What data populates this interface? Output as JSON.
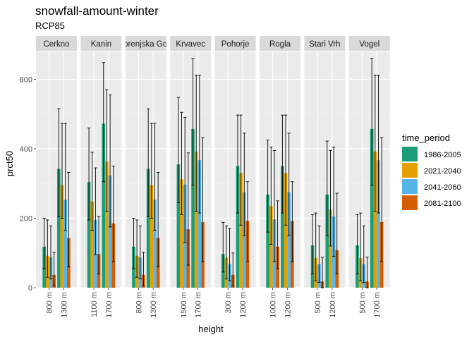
{
  "chart_data": {
    "type": "bar",
    "title": "snowfall-amount-winter",
    "subtitle": "RCP85",
    "xlabel": "height",
    "ylabel": "prct50",
    "ylim": [
      0,
      680
    ],
    "yticks": [
      0,
      200,
      400,
      600
    ],
    "grid": true,
    "legend": {
      "title": "time_period",
      "position": "right",
      "entries": [
        "1986-2005",
        "2021-2040",
        "2041-2060",
        "2081-2100"
      ],
      "colors": [
        "#1B9E77",
        "#E69F00",
        "#56B4E9",
        "#D55E00"
      ]
    },
    "facets": [
      {
        "name": "Cerkno",
        "heights": [
          {
            "label": "800 m",
            "values": [
              118,
              92,
              87,
              37
            ],
            "lower": [
              55,
              30,
              25,
              5
            ],
            "upper": [
              200,
              195,
              178,
              102
            ]
          },
          {
            "label": "1300 m",
            "values": [
              342,
              295,
              253,
              143
            ],
            "lower": [
              205,
              200,
              165,
              60
            ],
            "upper": [
              515,
              473,
              473,
              332
            ]
          }
        ]
      },
      {
        "name": "Kanin",
        "heights": [
          {
            "label": "1100 m",
            "values": [
              304,
              248,
              195,
              97
            ],
            "lower": [
              195,
              165,
              95,
              40
            ],
            "upper": [
              460,
              390,
              345,
              205
            ]
          },
          {
            "label": "1700 m",
            "values": [
              472,
              363,
              323,
              185
            ],
            "lower": [
              305,
              220,
              175,
              75
            ],
            "upper": [
              648,
              570,
              555,
              350
            ]
          }
        ]
      },
      {
        "name": "Gorenjska Gora",
        "heights": [
          {
            "label": "800 m",
            "values": [
              118,
              92,
              87,
              37
            ],
            "lower": [
              55,
              30,
              25,
              5
            ],
            "upper": [
              200,
              195,
              178,
              102
            ]
          },
          {
            "label": "1300 m",
            "values": [
              342,
              295,
              253,
              143
            ],
            "lower": [
              205,
              200,
              165,
              60
            ],
            "upper": [
              515,
              473,
              473,
              332
            ]
          }
        ]
      },
      {
        "name": "Krvavec",
        "heights": [
          {
            "label": "1500 m",
            "values": [
              355,
              312,
              297,
              168
            ],
            "lower": [
              245,
              210,
              130,
              65
            ],
            "upper": [
              548,
              505,
              490,
              388
            ]
          },
          {
            "label": "1700 m",
            "values": [
              457,
              392,
              367,
              189
            ],
            "lower": [
              295,
              220,
              215,
              75
            ],
            "upper": [
              660,
              612,
              612,
              432
            ]
          }
        ]
      },
      {
        "name": "Pohorje",
        "heights": [
          {
            "label": "300 m",
            "values": [
              97,
              86,
              68,
              37
            ],
            "lower": [
              45,
              25,
              20,
              5
            ],
            "upper": [
              188,
              178,
              170,
              100
            ]
          },
          {
            "label": "1200 m",
            "values": [
              350,
              330,
              275,
              192
            ],
            "lower": [
              215,
              180,
              150,
              75
            ],
            "upper": [
              497,
              497,
              445,
              305
            ]
          }
        ]
      },
      {
        "name": "Rogla",
        "heights": [
          {
            "label": "1000 m",
            "values": [
              268,
              235,
              197,
              118
            ],
            "lower": [
              160,
              125,
              75,
              55
            ],
            "upper": [
              425,
              405,
              395,
              250
            ]
          },
          {
            "label": "1200 m",
            "values": [
              350,
              330,
              275,
              192
            ],
            "lower": [
              215,
              180,
              150,
              75
            ],
            "upper": [
              497,
              497,
              445,
              305
            ]
          }
        ]
      },
      {
        "name": "Stari Vrh",
        "heights": [
          {
            "label": "500 m",
            "values": [
              122,
              85,
              68,
              18
            ],
            "lower": [
              40,
              20,
              15,
              0
            ],
            "upper": [
              210,
              215,
              178,
              88
            ]
          },
          {
            "label": "1200 m",
            "values": [
              268,
              225,
              205,
              108
            ],
            "lower": [
              150,
              120,
              90,
              40
            ],
            "upper": [
              422,
              395,
              405,
              272
            ]
          }
        ]
      },
      {
        "name": "Vogel",
        "heights": [
          {
            "label": "500 m",
            "values": [
              122,
              85,
              68,
              18
            ],
            "lower": [
              40,
              20,
              15,
              0
            ],
            "upper": [
              210,
              215,
              178,
              88
            ]
          },
          {
            "label": "1700 m",
            "values": [
              457,
              392,
              367,
              189
            ],
            "lower": [
              295,
              220,
              215,
              75
            ],
            "upper": [
              660,
              612,
              612,
              432
            ]
          }
        ]
      }
    ]
  }
}
